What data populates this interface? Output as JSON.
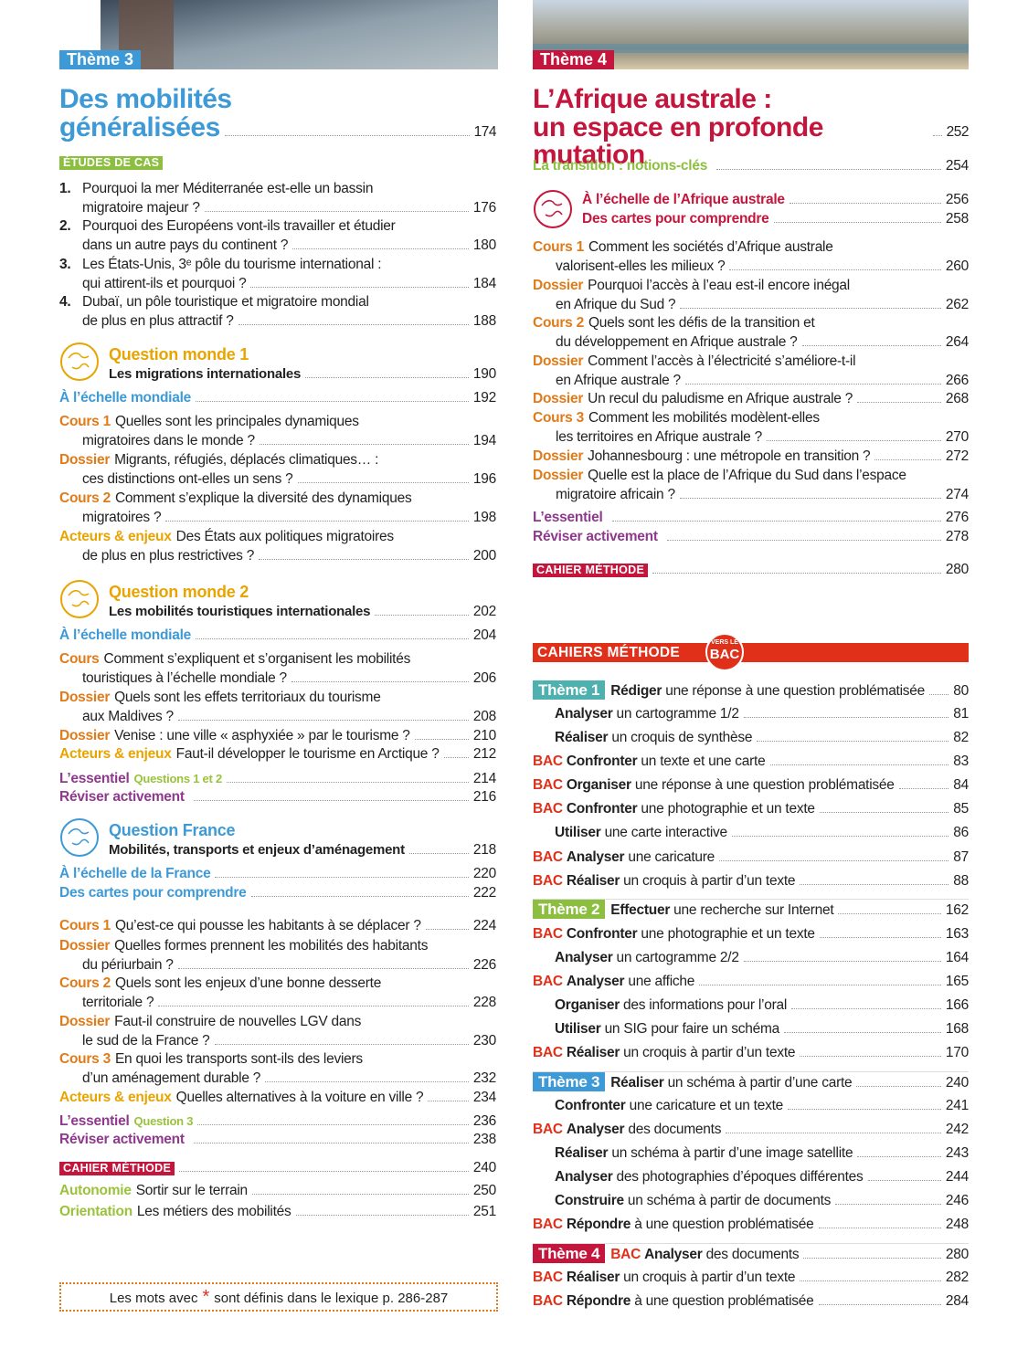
{
  "left": {
    "theme_tag": "Thème 3",
    "title": [
      "Des mobilités",
      "généralisées"
    ],
    "title_page": 174,
    "items": [
      {
        "heading": "ÉTUDES DE CAS"
      },
      {
        "number": "1.",
        "text": [
          "Pourquoi la mer Méditerranée est-elle un bassin",
          "migratoire majeur ?"
        ],
        "page": 176
      },
      {
        "number": "2.",
        "text": [
          "Pourquoi des Européens vont-ils travailler et étudier",
          "dans un autre pays du continent ?"
        ],
        "page": 180
      },
      {
        "number": "3.",
        "text": [
          "Les États-Unis, 3ᵉ pôle du tourisme international :",
          "qui attirent-ils et pourquoi ?"
        ],
        "page": 184
      },
      {
        "number": "4.",
        "text": [
          "Dubaï, un pôle touristique et migratoire mondial",
          "de plus en plus attractif ?"
        ],
        "page": 188
      },
      {
        "question": "Question monde 1",
        "text": [
          "Les migrations internationales"
        ],
        "page": 190
      },
      {
        "echelle": [
          "À l’échelle mondiale"
        ],
        "pages": [
          192
        ]
      },
      {
        "cours": "Cours 1",
        "text": [
          "Quelles sont les principales dynamiques",
          "migratoires dans le monde ?"
        ],
        "page": 194
      },
      {
        "dossier": "Dossier",
        "text": [
          "Migrants, réfugiés, déplacés climatiques… :",
          "ces distinctions ont-elles un sens ?"
        ],
        "page": 196
      },
      {
        "cours": "Cours 2",
        "text": [
          "Comment s’explique la diversité des dynamiques",
          "migratoires ?"
        ],
        "page": 198
      },
      {
        "acteurs": "Acteurs & enjeux",
        "text": [
          "Des États aux politiques migratoires",
          "de plus en plus restrictives ?"
        ],
        "page": 200
      },
      {
        "question": "Question monde 2",
        "text": [
          "Les mobilités touristiques internationales"
        ],
        "page": 202
      },
      {
        "echelle": [
          "À l’échelle mondiale"
        ],
        "pages": [
          204
        ]
      },
      {
        "cours": "Cours",
        "text": [
          "Comment s’expliquent et s’organisent les mobilités",
          "touristiques à l’échelle mondiale ?"
        ],
        "page": 206
      },
      {
        "dossier": "Dossier",
        "text": [
          "Quels sont les effets territoriaux du tourisme",
          "aux Maldives ?"
        ],
        "page": 208
      },
      {
        "dossier": "Dossier",
        "text": [
          "Venise : une ville « asphyxiée » par le tourisme ?"
        ],
        "page": 210
      },
      {
        "acteurs": "Acteurs & enjeux",
        "text": [
          "Faut-il développer le tourisme en Arctique ?"
        ],
        "page": 212
      },
      {
        "essentiel": "L’essentiel",
        "sub": "Questions 1 et 2",
        "page": 214
      },
      {
        "reviser": "Réviser activement",
        "page": 216
      },
      {
        "question": "Question France",
        "text": [
          "Mobilités, transports et enjeux d’aménagement"
        ],
        "page": 218
      },
      {
        "echelle": [
          "À l’échelle de la France",
          "Des cartes pour comprendre"
        ],
        "pages": [
          220,
          222
        ]
      },
      {
        "cours": "Cours 1",
        "text": [
          "Qu’est-ce qui pousse les habitants à se déplacer ?"
        ],
        "page": 224
      },
      {
        "dossier": "Dossier",
        "text": [
          "Quelles formes prennent les mobilités des habitants",
          "du périurbain ?"
        ],
        "page": 226
      },
      {
        "cours": "Cours 2",
        "text": [
          "Quels sont les enjeux d’une bonne desserte",
          "territoriale ?"
        ],
        "page": 228
      },
      {
        "dossier": "Dossier",
        "text": [
          "Faut-il construire de nouvelles LGV dans",
          "le sud de la France ?"
        ],
        "page": 230
      },
      {
        "cours": "Cours 3",
        "text": [
          "En quoi les transports sont-ils des leviers",
          "d’un aménagement durable ?"
        ],
        "page": 232
      },
      {
        "acteurs": "Acteurs & enjeux",
        "text": [
          "Quelles alternatives à la voiture en ville ?"
        ],
        "page": 234
      },
      {
        "essentiel": "L’essentiel",
        "sub": "Question 3",
        "page": 236
      },
      {
        "reviser": "Réviser activement",
        "page": 238
      },
      {
        "cahier": "CAHIER MÉTHODE",
        "page": 240
      },
      {
        "autonomie": "Autonomie",
        "text": [
          "Sortir sur le terrain"
        ],
        "page": 250
      },
      {
        "autonomie": "Orientation",
        "text": [
          "Les métiers des mobilités"
        ],
        "page": 251
      }
    ],
    "footer": {
      "before": "Les mots avec",
      "star": "*",
      "after": "sont définis dans le lexique p. 286-287"
    }
  },
  "right": {
    "theme_tag": "Thème 4",
    "title": [
      "L’Afrique australe :",
      "un espace en profonde mutation"
    ],
    "title_page": 252,
    "items": [
      {
        "transition": "La transition : notions-clés",
        "page": 254
      },
      {
        "afrique": [
          "À l’échelle de l’Afrique australe",
          "Des cartes pour comprendre"
        ],
        "pages": [
          256,
          258
        ]
      },
      {
        "cours": "Cours 1",
        "text": [
          "Comment les sociétés d’Afrique australe",
          "valorisent-elles les milieux ?"
        ],
        "page": 260
      },
      {
        "dossier": "Dossier",
        "text": [
          "Pourquoi l’accès à l’eau est-il encore inégal",
          "en Afrique du Sud ?"
        ],
        "page": 262
      },
      {
        "cours": "Cours 2",
        "text": [
          "Quels sont les défis de la transition et",
          "du développement en Afrique australe ?"
        ],
        "page": 264
      },
      {
        "dossier": "Dossier",
        "text": [
          "Comment l’accès à l’électricité s’améliore-t-il",
          "en Afrique australe ?"
        ],
        "page": 266
      },
      {
        "dossier": "Dossier",
        "text": [
          "Un recul du paludisme en Afrique australe ?"
        ],
        "page": 268
      },
      {
        "cours": "Cours 3",
        "text": [
          "Comment les mobilités modèlent-elles",
          "les territoires en Afrique australe ?"
        ],
        "page": 270
      },
      {
        "dossier": "Dossier",
        "text": [
          "Johannesbourg : une métropole en transition ?"
        ],
        "page": 272
      },
      {
        "dossier": "Dossier",
        "text": [
          "Quelle est la place de l’Afrique du Sud dans l’espace",
          "migratoire africain ?"
        ],
        "page": 274
      },
      {
        "essentiel": "L’essentiel",
        "page": 276
      },
      {
        "reviser": "Réviser activement",
        "page": 278
      },
      {
        "cahier": "CAHIER MÉTHODE",
        "page": 280
      }
    ]
  },
  "methode": {
    "title": "CAHIERS MÉTHODE",
    "badge": [
      "VERS LE",
      "BAC"
    ],
    "rows": [
      {
        "theme": "Thème 1",
        "verb": "Rédiger",
        "rest": "une réponse à une question problématisée",
        "page": 80
      },
      {
        "verb": "Analyser",
        "rest": "un cartogramme 1/2",
        "page": 81
      },
      {
        "verb": "Réaliser",
        "rest": "un croquis de synthèse",
        "page": 82
      },
      {
        "bac": "BAC",
        "verb": "Confronter",
        "rest": "un texte et une carte",
        "page": 83
      },
      {
        "bac": "BAC",
        "verb": "Organiser",
        "rest": "une réponse à une question problématisée",
        "page": 84
      },
      {
        "bac": "BAC",
        "verb": "Confronter",
        "rest": "une photographie et un texte",
        "page": 85
      },
      {
        "verb": "Utiliser",
        "rest": "une carte interactive",
        "page": 86
      },
      {
        "bac": "BAC",
        "verb": "Analyser",
        "rest": "une caricature",
        "page": 87
      },
      {
        "bac": "BAC",
        "verb": "Réaliser",
        "rest": "un croquis à partir d’un texte",
        "page": 88
      },
      {
        "theme": "Thème 2",
        "verb": "Effectuer",
        "rest": "une recherche sur Internet",
        "page": 162
      },
      {
        "bac": "BAC",
        "verb": "Confronter",
        "rest": "une photographie et un texte",
        "page": 163
      },
      {
        "verb": "Analyser",
        "rest": "un cartogramme 2/2",
        "page": 164
      },
      {
        "bac": "BAC",
        "verb": "Analyser",
        "rest": "une affiche",
        "page": 165
      },
      {
        "verb": "Organiser",
        "rest": "des informations pour l’oral",
        "page": 166
      },
      {
        "verb": "Utiliser",
        "rest": "un SIG pour faire un schéma",
        "page": 168
      },
      {
        "bac": "BAC",
        "verb": "Réaliser",
        "rest": "un croquis à partir d’un texte",
        "page": 170
      },
      {
        "theme": "Thème 3",
        "verb": "Réaliser",
        "rest": "un schéma à partir d’une carte",
        "page": 240
      },
      {
        "verb": "Confronter",
        "rest": "une caricature et un texte",
        "page": 241
      },
      {
        "bac": "BAC",
        "verb": "Analyser",
        "rest": "des documents",
        "page": 242
      },
      {
        "verb": "Réaliser",
        "rest": "un schéma à partir d’une image satellite",
        "page": 243
      },
      {
        "verb": "Analyser",
        "rest": "des photographies d’époques différentes",
        "page": 244
      },
      {
        "verb": "Construire",
        "rest": "un schéma à partir de documents",
        "page": 246
      },
      {
        "bac": "BAC",
        "verb": "Répondre",
        "rest": "à une question problématisée",
        "page": 248
      },
      {
        "theme": "Thème 4",
        "bac": "BAC",
        "verb": "Analyser",
        "rest": "des documents",
        "page": 280
      },
      {
        "bac": "BAC",
        "verb": "Réaliser",
        "rest": "un croquis à partir d’un texte",
        "page": 282
      },
      {
        "bac": "BAC",
        "verb": "Répondre",
        "rest": "à une question problématisée",
        "page": 284
      }
    ]
  }
}
